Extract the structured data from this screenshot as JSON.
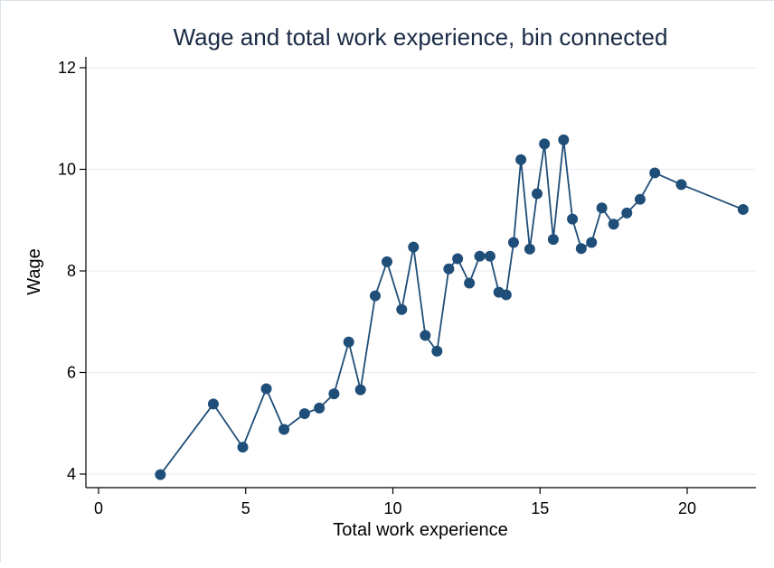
{
  "chart_data": {
    "type": "line",
    "title": "Wage and total work experience, bin connected",
    "xlabel": "Total work experience",
    "ylabel": "Wage",
    "xlim": [
      0,
      22
    ],
    "ylim": [
      4,
      12
    ],
    "x_ticks": [
      0,
      5,
      10,
      15,
      20
    ],
    "y_ticks": [
      4,
      6,
      8,
      10,
      12
    ],
    "grid": "horizontal",
    "series": [
      {
        "color": "#1f4e79",
        "points": [
          [
            2.1,
            3.99
          ],
          [
            3.9,
            5.38
          ],
          [
            4.9,
            4.53
          ],
          [
            5.7,
            5.68
          ],
          [
            6.3,
            4.88
          ],
          [
            7.0,
            5.19
          ],
          [
            7.5,
            5.3
          ],
          [
            8.0,
            5.58
          ],
          [
            8.5,
            6.6
          ],
          [
            8.9,
            5.66
          ],
          [
            9.4,
            7.51
          ],
          [
            9.8,
            8.18
          ],
          [
            10.3,
            7.24
          ],
          [
            10.7,
            8.47
          ],
          [
            11.1,
            6.73
          ],
          [
            11.5,
            6.42
          ],
          [
            11.9,
            8.04
          ],
          [
            12.2,
            8.24
          ],
          [
            12.6,
            7.76
          ],
          [
            12.95,
            8.29
          ],
          [
            13.3,
            8.29
          ],
          [
            13.6,
            7.58
          ],
          [
            13.85,
            7.53
          ],
          [
            14.1,
            8.56
          ],
          [
            14.35,
            10.19
          ],
          [
            14.65,
            8.43
          ],
          [
            14.9,
            9.52
          ],
          [
            15.15,
            10.5
          ],
          [
            15.45,
            8.62
          ],
          [
            15.8,
            10.58
          ],
          [
            16.1,
            9.02
          ],
          [
            16.4,
            8.44
          ],
          [
            16.75,
            8.56
          ],
          [
            17.1,
            9.24
          ],
          [
            17.5,
            8.92
          ],
          [
            17.95,
            9.14
          ],
          [
            18.4,
            9.41
          ],
          [
            18.9,
            9.93
          ],
          [
            19.8,
            9.7
          ],
          [
            21.9,
            9.21
          ]
        ]
      }
    ]
  }
}
